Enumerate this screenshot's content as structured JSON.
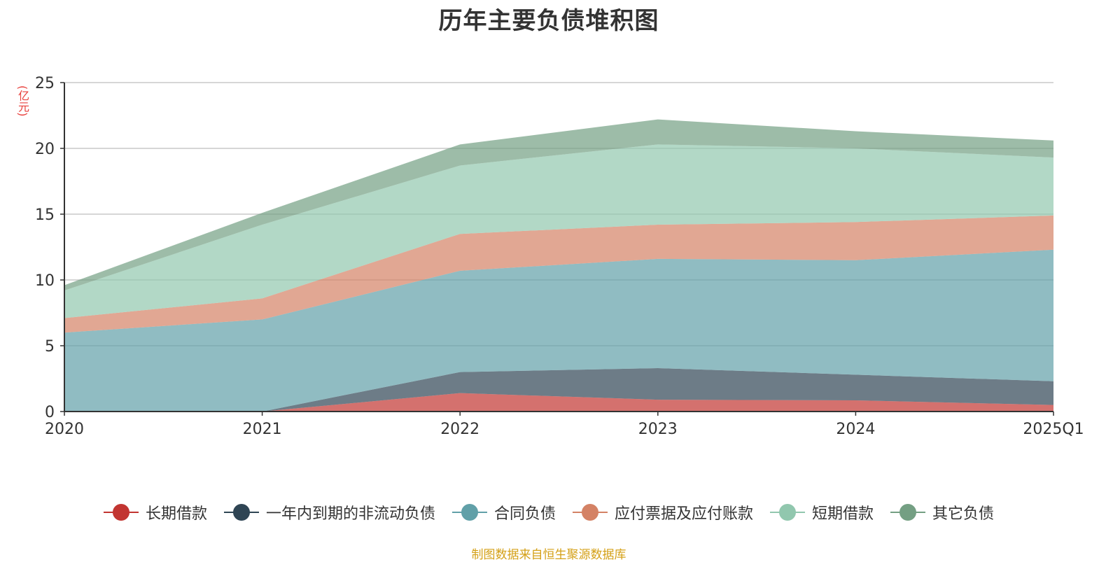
{
  "title": "历年主要负债堆积图",
  "unit_label": "(亿元)",
  "source": "制图数据来自恒生聚源数据库",
  "chart_data": {
    "type": "area",
    "stacked": true,
    "title": "历年主要负债堆积图",
    "ylabel": "(亿元)",
    "categories": [
      "2020",
      "2021",
      "2022",
      "2023",
      "2024",
      "2025Q1"
    ],
    "ylim": [
      0,
      25
    ],
    "yticks": [
      0,
      5,
      10,
      15,
      20,
      25
    ],
    "grid": true,
    "legend_position": "bottom",
    "series": [
      {
        "name": "长期借款",
        "color": "#c23531",
        "values": [
          0,
          0,
          1.4,
          0.9,
          0.85,
          0.5
        ]
      },
      {
        "name": "一年内到期的非流动负债",
        "color": "#2f4554",
        "values": [
          0,
          0,
          1.6,
          2.4,
          1.95,
          1.8
        ]
      },
      {
        "name": "合同负债",
        "color": "#61a0a8",
        "values": [
          6.0,
          7.0,
          7.7,
          8.3,
          8.7,
          10.0
        ]
      },
      {
        "name": "应付票据及应付账款",
        "color": "#d48265",
        "values": [
          1.1,
          1.6,
          2.8,
          2.6,
          2.9,
          2.6
        ]
      },
      {
        "name": "短期借款",
        "color": "#91c7ae",
        "values": [
          2.1,
          5.6,
          5.2,
          6.1,
          5.6,
          4.4
        ]
      },
      {
        "name": "其它负债",
        "color": "#749f83",
        "values": [
          0.4,
          0.9,
          1.6,
          1.9,
          1.3,
          1.3
        ]
      }
    ]
  }
}
